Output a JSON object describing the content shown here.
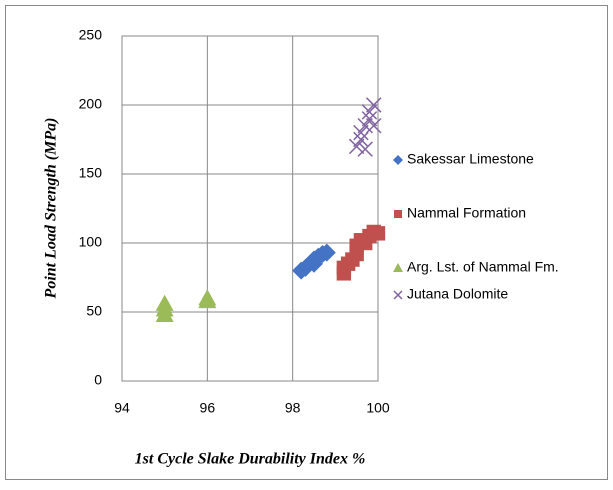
{
  "chart_data": {
    "type": "scatter",
    "xlabel": "1st Cycle Slake Durability Index %",
    "ylabel": "Point Load Strength (MPa)",
    "xlim": [
      94,
      100
    ],
    "xticks": [
      94,
      96,
      98,
      100
    ],
    "ylim": [
      0,
      250
    ],
    "yticks": [
      0,
      50,
      100,
      150,
      200,
      250
    ],
    "grid": true,
    "legend": "right",
    "series": [
      {
        "name": "Sakessar Limestone",
        "color": "#4472c4",
        "marker": "diamond",
        "x": [
          98.2,
          98.3,
          98.5,
          98.5,
          98.6,
          98.7,
          98.8
        ],
        "values": [
          80,
          82,
          85,
          88,
          90,
          92,
          93
        ]
      },
      {
        "name": "Nammal Formation",
        "color": "#c0504d",
        "marker": "square",
        "x": [
          99.2,
          99.2,
          99.3,
          99.4,
          99.5,
          99.5,
          99.6,
          99.7,
          99.8,
          99.9,
          100
        ],
        "values": [
          78,
          82,
          85,
          88,
          92,
          98,
          102,
          100,
          105,
          108,
          107
        ]
      },
      {
        "name": "Arg. Lst. of Nammal Fm.",
        "color": "#9bbb59",
        "marker": "triangle",
        "x": [
          95,
          95,
          95,
          96,
          96
        ],
        "values": [
          48,
          52,
          56,
          58,
          60
        ]
      },
      {
        "name": "Jutana Dolomite",
        "color": "#8064a2",
        "marker": "x",
        "x": [
          99.5,
          99.6,
          99.6,
          99.7,
          99.8,
          99.8,
          99.9,
          99.9,
          99.7
        ],
        "values": [
          170,
          175,
          180,
          185,
          190,
          195,
          200,
          185,
          168
        ]
      }
    ]
  }
}
